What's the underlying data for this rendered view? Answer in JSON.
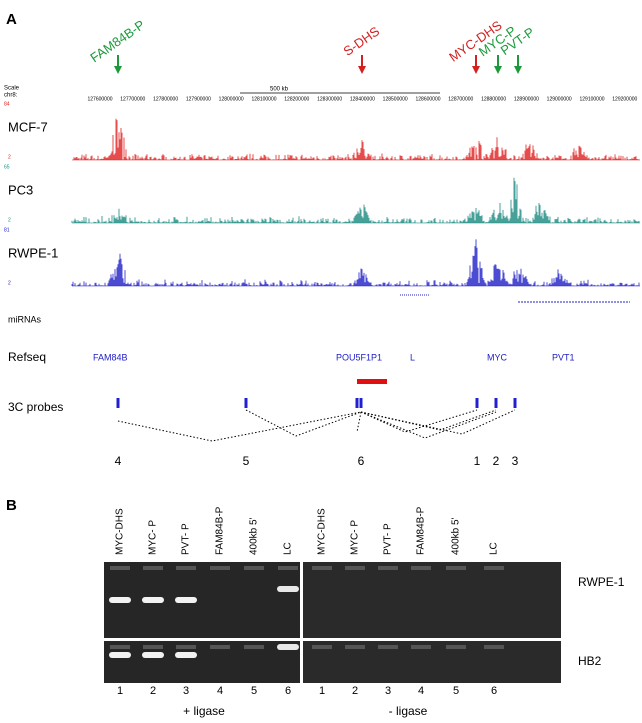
{
  "panel_a": {
    "label": "A",
    "arrows": [
      {
        "text": "FAM84B-P",
        "color": "#1a9a3a"
      },
      {
        "text": "S-DHS",
        "color": "#d42020"
      },
      {
        "text": "MYC-DHS",
        "color": "#d42020"
      },
      {
        "text": "MYC-P",
        "color": "#1a9a3a"
      },
      {
        "text": "PVT-P",
        "color": "#1a9a3a"
      }
    ],
    "scale": {
      "title": "Scale",
      "chrom": "chr8:",
      "size": "500 kb",
      "coords": [
        "127600000",
        "127700000",
        "127800000",
        "127900000",
        "128000000",
        "128100000",
        "128200000",
        "128300000",
        "128400000",
        "128500000",
        "128600000",
        "128700000",
        "128800000",
        "128900000",
        "129000000",
        "129100000",
        "129200000"
      ]
    },
    "tracks": [
      {
        "name": "MCF-7",
        "max": "84",
        "min": "2",
        "color": "#e02020"
      },
      {
        "name": "PC3",
        "max": "65",
        "min": "2",
        "color": "#1a8a80"
      },
      {
        "name": "RWPE-1",
        "max": "81",
        "min": "2",
        "color": "#2020c8"
      }
    ],
    "mirnas": "miRNAs",
    "refseq": {
      "label": "Refseq",
      "genes": [
        "FAM84B",
        "POU5F1P1",
        "L",
        "MYC",
        "PVT1"
      ]
    },
    "probes": {
      "label": "3C probes",
      "numbers": [
        "4",
        "5",
        "6",
        "1",
        "2",
        "3"
      ]
    }
  },
  "panel_b": {
    "label": "B",
    "lanes": [
      [
        "MYC-DHS",
        "MYC- P",
        "PVT- P",
        "FAM84B-P",
        "400kb 5'",
        "LC"
      ],
      [
        "MYC-DHS",
        "MYC- P",
        "PVT- P",
        "FAM84B-P",
        "400kb 5'",
        "LC"
      ]
    ],
    "rows": [
      "RWPE-1",
      "HB2"
    ],
    "lane_numbers": [
      [
        "1",
        "2",
        "3",
        "4",
        "5",
        "6"
      ],
      [
        "1",
        "2",
        "3",
        "4",
        "5",
        "6"
      ]
    ],
    "conditions": [
      "+ ligase",
      "- ligase"
    ]
  }
}
